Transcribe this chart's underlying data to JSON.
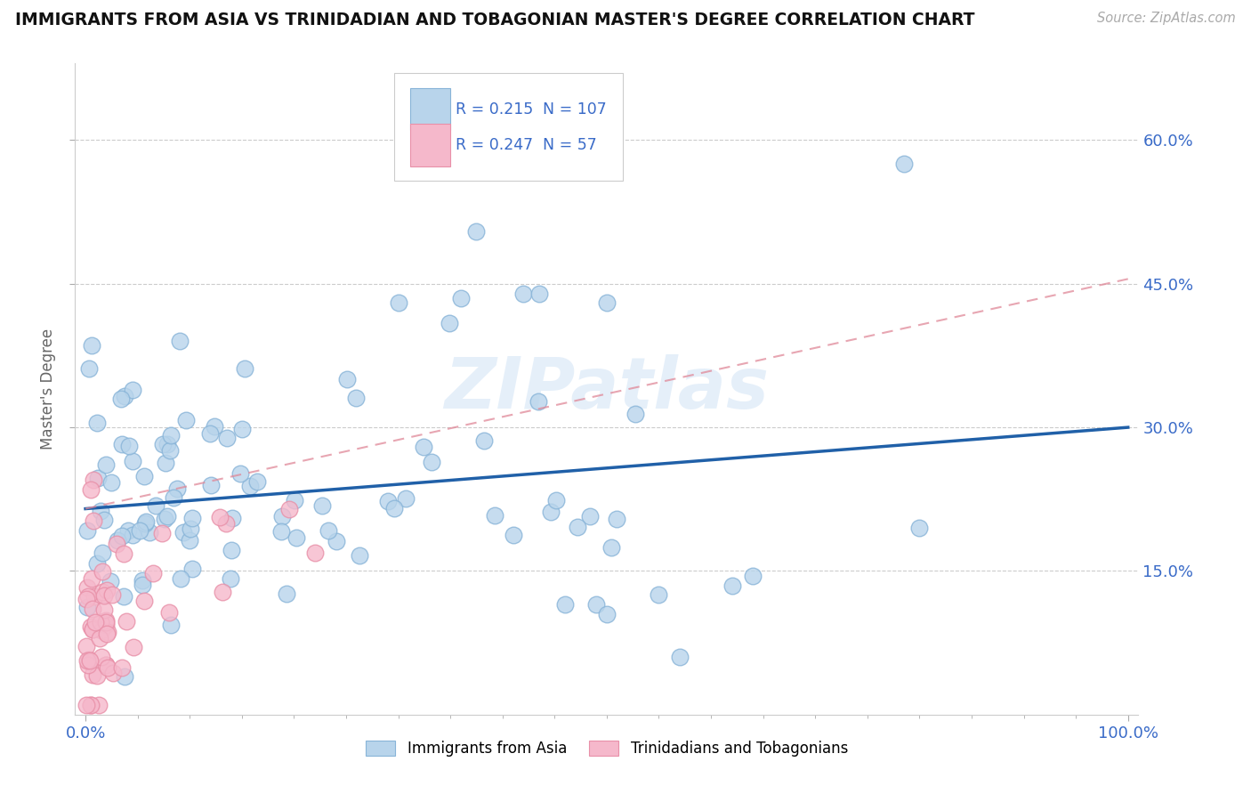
{
  "title": "IMMIGRANTS FROM ASIA VS TRINIDADIAN AND TOBAGONIAN MASTER'S DEGREE CORRELATION CHART",
  "source": "Source: ZipAtlas.com",
  "ylabel": "Master's Degree",
  "legend1_R": "0.215",
  "legend1_N": "107",
  "legend2_R": "0.247",
  "legend2_N": "57",
  "asia_color": "#b8d4eb",
  "asia_edge": "#88b4d8",
  "tt_color": "#f5b8cb",
  "tt_edge": "#e890a8",
  "line_asia_color": "#2060a8",
  "line_tt_color": "#e08898",
  "watermark": "ZIPatlas",
  "ylim": [
    0.0,
    0.68
  ],
  "xlim": [
    -0.01,
    1.01
  ],
  "ytick_vals": [
    0.15,
    0.3,
    0.45,
    0.6
  ],
  "ytick_labels": [
    "15.0%",
    "30.0%",
    "45.0%",
    "60.0%"
  ],
  "asia_line_x0": 0.0,
  "asia_line_y0": 0.215,
  "asia_line_x1": 1.0,
  "asia_line_y1": 0.3,
  "tt_line_x0": 0.0,
  "tt_line_y0": 0.215,
  "tt_line_x1": 1.0,
  "tt_line_y1": 0.455
}
